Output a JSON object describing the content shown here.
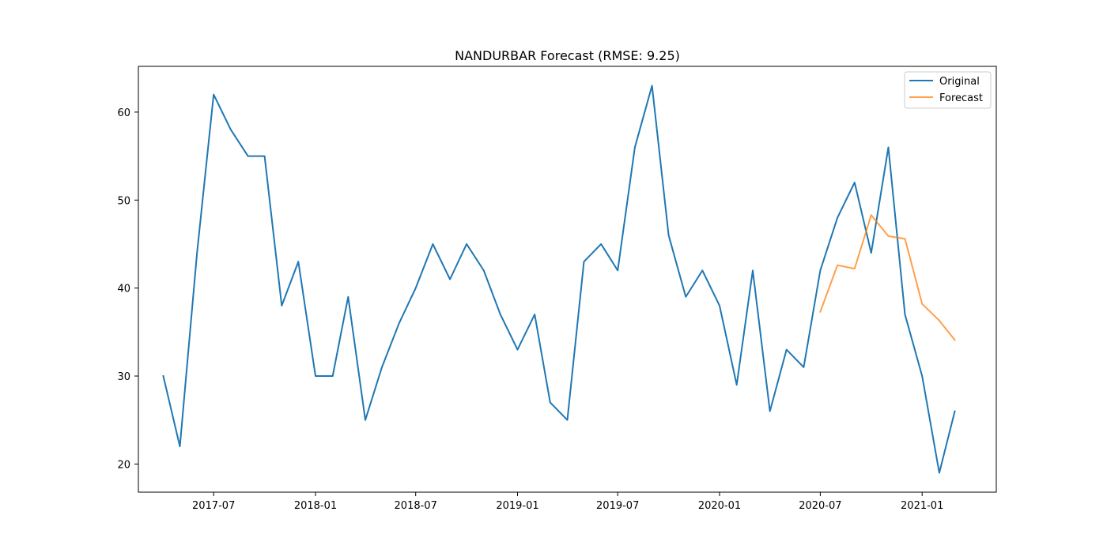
{
  "chart_data": {
    "type": "line",
    "title": "NANDURBAR Forecast (RMSE: 9.25)",
    "xlabel": "",
    "ylabel": "",
    "x_ticks": [
      "2017-07",
      "2018-01",
      "2018-07",
      "2019-01",
      "2019-07",
      "2020-01",
      "2020-07",
      "2021-01"
    ],
    "y_ticks": [
      20,
      30,
      40,
      50,
      60
    ],
    "xlim": [
      "2017-02-15",
      "2021-05-15"
    ],
    "ylim": [
      16.8,
      65.2
    ],
    "grid": false,
    "legend_position": "top-right",
    "series": [
      {
        "name": "Original",
        "color": "#1f77b4",
        "points": [
          [
            "2017-04-01",
            30
          ],
          [
            "2017-05-01",
            22
          ],
          [
            "2017-06-01",
            44
          ],
          [
            "2017-07-01",
            62
          ],
          [
            "2017-08-01",
            58
          ],
          [
            "2017-09-01",
            55
          ],
          [
            "2017-10-01",
            55
          ],
          [
            "2017-11-01",
            38
          ],
          [
            "2017-12-01",
            43
          ],
          [
            "2018-01-01",
            30
          ],
          [
            "2018-02-01",
            30
          ],
          [
            "2018-03-01",
            39
          ],
          [
            "2018-04-01",
            25
          ],
          [
            "2018-05-01",
            31
          ],
          [
            "2018-06-01",
            36
          ],
          [
            "2018-07-01",
            40
          ],
          [
            "2018-08-01",
            45
          ],
          [
            "2018-09-01",
            41
          ],
          [
            "2018-10-01",
            45
          ],
          [
            "2018-11-01",
            42
          ],
          [
            "2018-12-01",
            37
          ],
          [
            "2019-01-01",
            33
          ],
          [
            "2019-02-01",
            37
          ],
          [
            "2019-03-01",
            27
          ],
          [
            "2019-04-01",
            25
          ],
          [
            "2019-05-01",
            43
          ],
          [
            "2019-06-01",
            45
          ],
          [
            "2019-07-01",
            42
          ],
          [
            "2019-08-01",
            56
          ],
          [
            "2019-09-01",
            63
          ],
          [
            "2019-10-01",
            46
          ],
          [
            "2019-11-01",
            39
          ],
          [
            "2019-12-01",
            42
          ],
          [
            "2020-01-01",
            38
          ],
          [
            "2020-02-01",
            29
          ],
          [
            "2020-03-01",
            42
          ],
          [
            "2020-04-01",
            26
          ],
          [
            "2020-05-01",
            33
          ],
          [
            "2020-06-01",
            31
          ],
          [
            "2020-07-01",
            42
          ],
          [
            "2020-08-01",
            48
          ],
          [
            "2020-09-01",
            52
          ],
          [
            "2020-10-01",
            44
          ],
          [
            "2020-11-01",
            56
          ],
          [
            "2020-12-01",
            37
          ],
          [
            "2021-01-01",
            30
          ],
          [
            "2021-02-01",
            19
          ],
          [
            "2021-03-01",
            26
          ]
        ]
      },
      {
        "name": "Forecast",
        "color": "#ff7f0e",
        "points": [
          [
            "2020-07-01",
            37.3
          ],
          [
            "2020-08-01",
            42.6
          ],
          [
            "2020-09-01",
            42.2
          ],
          [
            "2020-10-01",
            48.3
          ],
          [
            "2020-11-01",
            45.9
          ],
          [
            "2020-12-01",
            45.6
          ],
          [
            "2021-01-01",
            38.2
          ],
          [
            "2021-02-01",
            36.3
          ],
          [
            "2021-03-01",
            34.1
          ]
        ]
      }
    ]
  }
}
